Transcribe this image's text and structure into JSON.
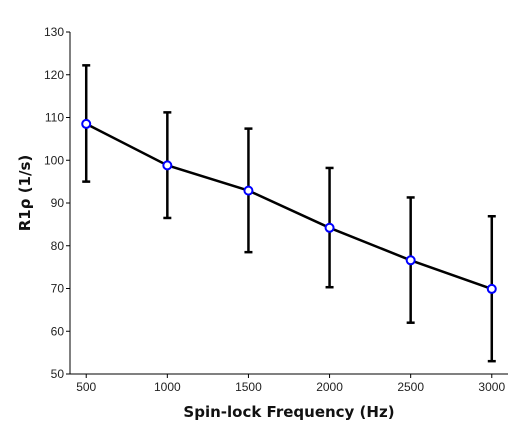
{
  "chart_data": {
    "type": "line",
    "xlabel": "Spin-lock Frequency (Hz)",
    "ylabel": "R1ρ (1/s)",
    "x": [
      500,
      1000,
      1500,
      2000,
      2500,
      3000
    ],
    "xticks": [
      500,
      1000,
      1500,
      2000,
      2500,
      3000
    ],
    "yticks": [
      50,
      60,
      70,
      80,
      90,
      100,
      110,
      120,
      130
    ],
    "ylim": [
      50,
      130
    ],
    "xlim": [
      400,
      3100
    ],
    "grid": false,
    "series": [
      {
        "values": [
          108.5,
          98.8,
          92.9,
          84.2,
          76.6,
          69.9
        ],
        "error_low": [
          95.0,
          86.5,
          78.5,
          70.3,
          62.0,
          53.0
        ],
        "error_high": [
          122.2,
          111.2,
          107.4,
          98.2,
          91.3,
          86.9
        ],
        "line_color": "#000000",
        "marker_color": "#0000ff"
      }
    ]
  }
}
